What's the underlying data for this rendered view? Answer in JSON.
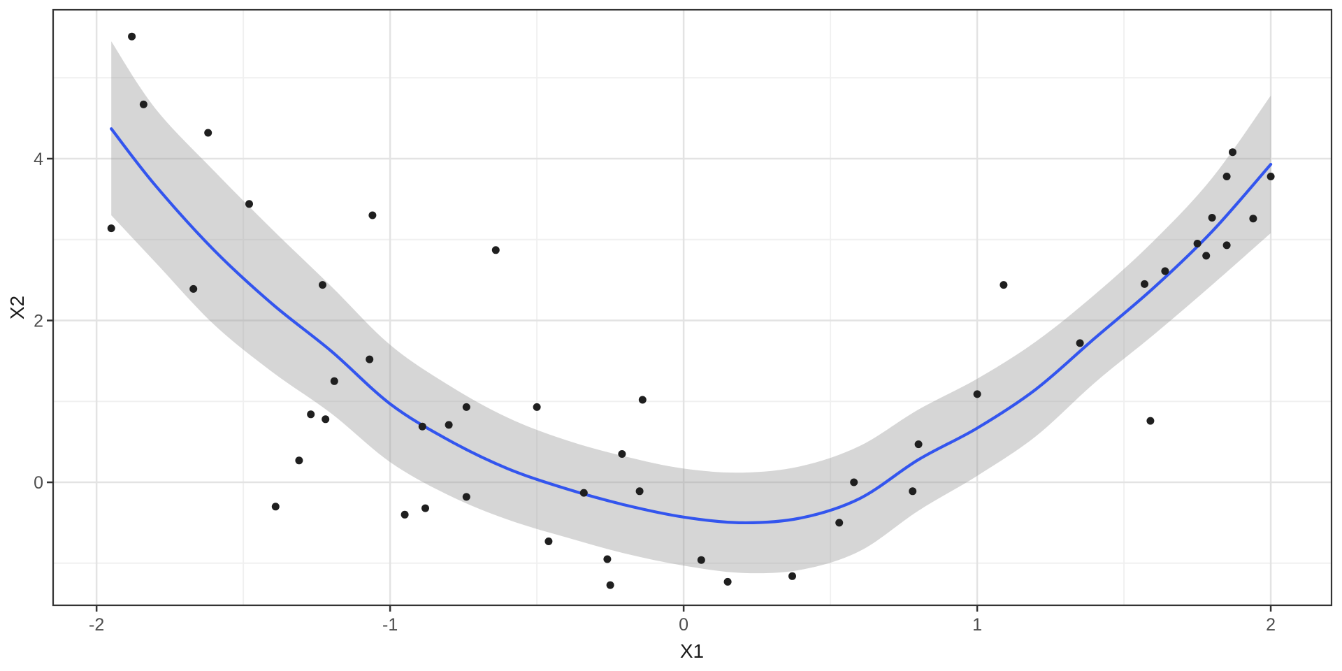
{
  "chart_data": {
    "type": "scatter",
    "xlabel": "X1",
    "ylabel": "X2",
    "x_domain": [
      -2.148,
      2.207
    ],
    "y_domain": [
      -1.52,
      5.84
    ],
    "x_ticks": {
      "values": [
        -2,
        -1,
        0,
        1,
        2
      ],
      "labels": [
        "-2",
        "-1",
        "0",
        "1",
        "2"
      ]
    },
    "y_ticks": {
      "values": [
        4,
        2,
        0
      ],
      "labels": [
        "4",
        "2",
        "0"
      ]
    },
    "x_minor": [
      -1.5,
      -0.5,
      0.5,
      1.5
    ],
    "y_minor": [
      5,
      3,
      1,
      -1
    ],
    "grid": true,
    "legend": "none",
    "points": [
      [
        -1.95,
        3.14
      ],
      [
        -1.88,
        5.51
      ],
      [
        -1.84,
        4.67
      ],
      [
        -1.67,
        2.39
      ],
      [
        -1.62,
        4.32
      ],
      [
        -1.48,
        3.44
      ],
      [
        -1.39,
        -0.3
      ],
      [
        -1.31,
        0.27
      ],
      [
        -1.27,
        0.84
      ],
      [
        -1.23,
        2.44
      ],
      [
        -1.22,
        0.78
      ],
      [
        -1.19,
        1.25
      ],
      [
        -1.07,
        1.52
      ],
      [
        -1.06,
        3.3
      ],
      [
        -0.95,
        -0.4
      ],
      [
        -0.89,
        0.69
      ],
      [
        -0.88,
        -0.32
      ],
      [
        -0.8,
        0.71
      ],
      [
        -0.74,
        0.93
      ],
      [
        -0.74,
        -0.18
      ],
      [
        -0.64,
        2.87
      ],
      [
        -0.5,
        0.93
      ],
      [
        -0.46,
        -0.73
      ],
      [
        -0.34,
        -0.13
      ],
      [
        -0.26,
        -0.95
      ],
      [
        -0.25,
        -1.27
      ],
      [
        -0.21,
        0.35
      ],
      [
        -0.15,
        -0.11
      ],
      [
        -0.14,
        1.02
      ],
      [
        0.06,
        -0.96
      ],
      [
        0.15,
        -1.23
      ],
      [
        0.37,
        -1.16
      ],
      [
        0.53,
        -0.5
      ],
      [
        0.58,
        0.0
      ],
      [
        0.78,
        -0.11
      ],
      [
        0.8,
        0.47
      ],
      [
        1.0,
        1.09
      ],
      [
        1.09,
        2.44
      ],
      [
        1.35,
        1.72
      ],
      [
        1.57,
        2.45
      ],
      [
        1.59,
        0.76
      ],
      [
        1.64,
        2.61
      ],
      [
        1.75,
        2.95
      ],
      [
        1.78,
        2.8
      ],
      [
        1.8,
        3.27
      ],
      [
        1.85,
        2.93
      ],
      [
        1.85,
        3.78
      ],
      [
        1.87,
        4.08
      ],
      [
        1.94,
        3.26
      ],
      [
        2.0,
        3.78
      ]
    ],
    "smooth": {
      "x": [
        -1.95,
        -1.8,
        -1.6,
        -1.4,
        -1.2,
        -1.0,
        -0.8,
        -0.6,
        -0.4,
        -0.2,
        0.0,
        0.2,
        0.4,
        0.6,
        0.8,
        1.0,
        1.2,
        1.4,
        1.6,
        1.8,
        2.0
      ],
      "y": [
        4.37,
        3.67,
        2.87,
        2.2,
        1.62,
        0.97,
        0.52,
        0.17,
        -0.08,
        -0.28,
        -0.43,
        -0.5,
        -0.44,
        -0.2,
        0.28,
        0.67,
        1.15,
        1.78,
        2.4,
        3.1,
        3.93
      ],
      "upper": [
        5.45,
        4.62,
        3.85,
        3.12,
        2.42,
        1.7,
        1.2,
        0.8,
        0.52,
        0.32,
        0.17,
        0.12,
        0.2,
        0.45,
        0.9,
        1.28,
        1.74,
        2.32,
        2.98,
        3.76,
        4.78
      ],
      "lower": [
        3.3,
        2.72,
        1.95,
        1.36,
        0.85,
        0.25,
        -0.16,
        -0.46,
        -0.68,
        -0.88,
        -1.03,
        -1.12,
        -1.08,
        -0.85,
        -0.35,
        0.08,
        0.57,
        1.23,
        1.82,
        2.44,
        3.08
      ]
    },
    "colors": {
      "background": "#FFFFFF",
      "panel_background": "#FFFFFF",
      "panel_border": "#333333",
      "grid_major": "#E3E3E3",
      "grid_minor": "#F0F0F0",
      "band_fill": "#999999",
      "band_opacity": 0.4,
      "line": "#3355EE",
      "point": "#1F1F1F",
      "tick_mark": "#333333",
      "tick_label": "#4D4D4D",
      "axis_title": "#1A1A1A"
    }
  }
}
